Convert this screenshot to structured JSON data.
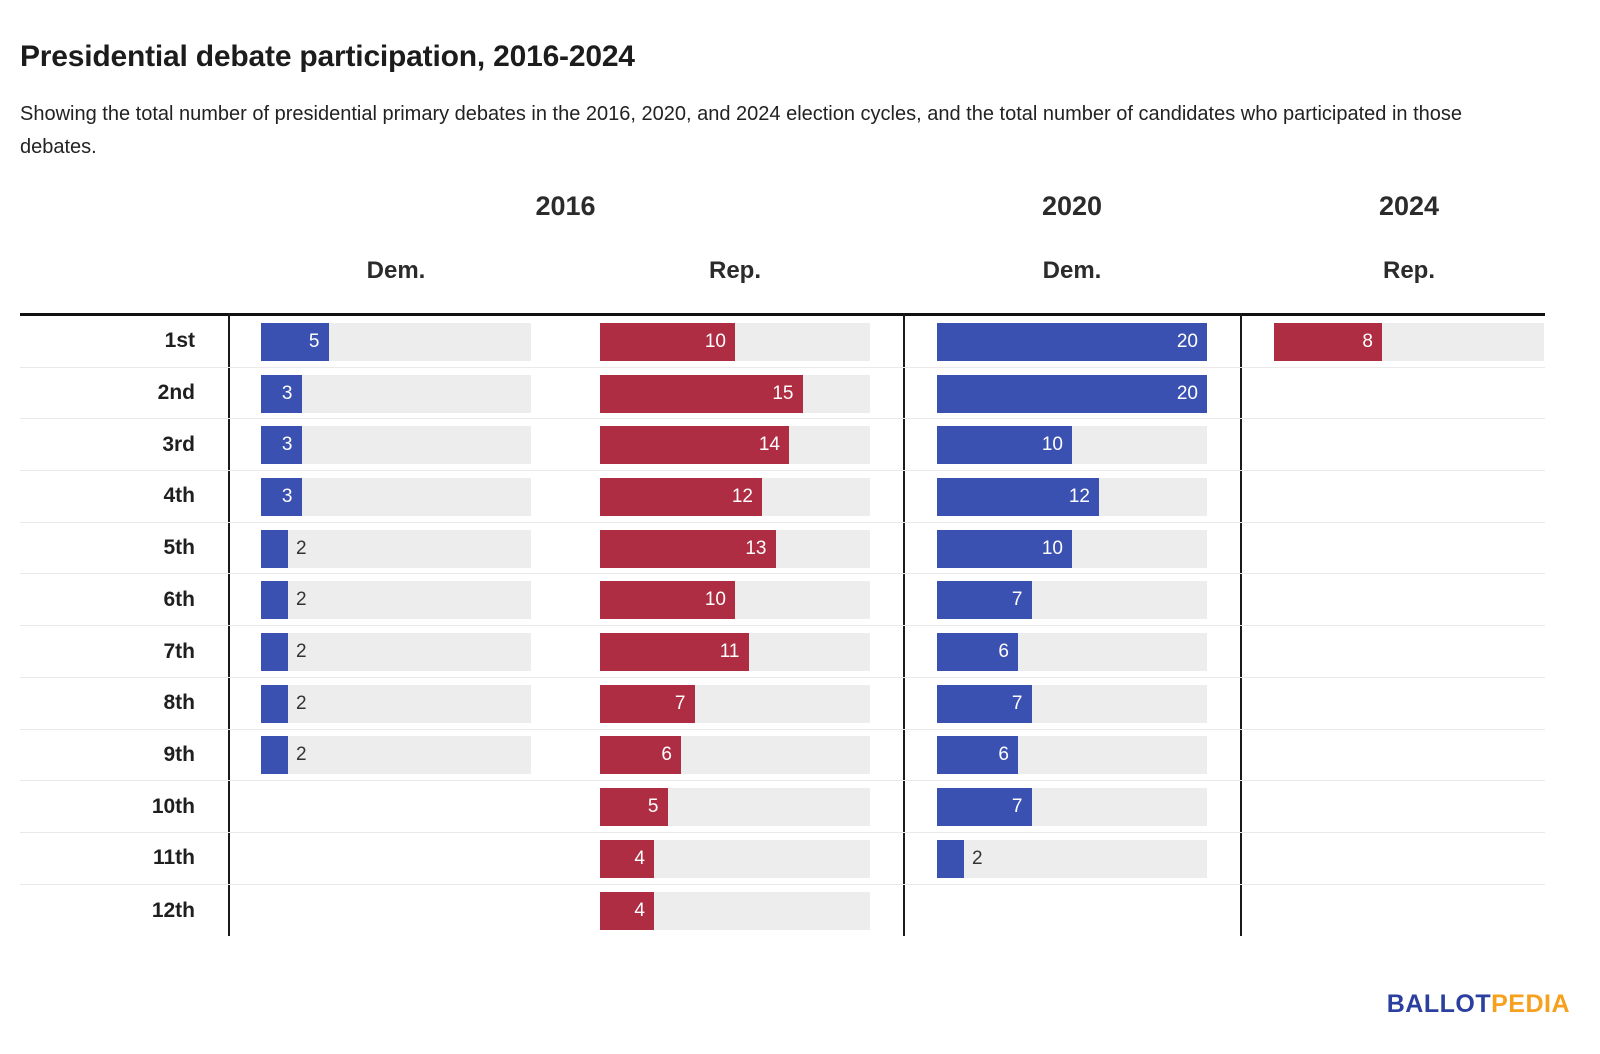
{
  "header": {
    "title": "Presidential debate participation, 2016-2024",
    "subtitle": "Showing the total number of presidential primary debates in the 2016, 2020, and 2024 election cycles, and the total number of candidates who participated in those debates."
  },
  "footer": {
    "logo_part1": "BALLOT",
    "logo_part2": "PEDIA"
  },
  "colors": {
    "dem": "#3a51b2",
    "rep": "#ae2d42",
    "track": "#ededed",
    "logo_blue": "#2b3f9e",
    "logo_orange": "#f7a01d"
  },
  "chart_data": {
    "type": "bar",
    "orientation": "horizontal",
    "title": "Presidential debate participation, 2016-2024",
    "value_range": [
      0,
      20
    ],
    "grid": false,
    "categories": [
      "1st",
      "2nd",
      "3rd",
      "4th",
      "5th",
      "6th",
      "7th",
      "8th",
      "9th",
      "10th",
      "11th",
      "12th"
    ],
    "groups": [
      {
        "year": "2016",
        "columns": [
          "Dem.",
          "Rep."
        ]
      },
      {
        "year": "2020",
        "columns": [
          "Dem."
        ]
      },
      {
        "year": "2024",
        "columns": [
          "Rep."
        ]
      }
    ],
    "series": [
      {
        "name": "2016 Dem.",
        "year": "2016",
        "party_label": "Dem.",
        "party": "dem",
        "values": [
          5,
          3,
          3,
          3,
          2,
          2,
          2,
          2,
          2,
          null,
          null,
          null
        ]
      },
      {
        "name": "2016 Rep.",
        "year": "2016",
        "party_label": "Rep.",
        "party": "rep",
        "values": [
          10,
          15,
          14,
          12,
          13,
          10,
          11,
          7,
          6,
          5,
          4,
          4
        ]
      },
      {
        "name": "2020 Dem.",
        "year": "2020",
        "party_label": "Dem.",
        "party": "dem",
        "values": [
          20,
          20,
          10,
          12,
          10,
          7,
          6,
          7,
          6,
          7,
          2,
          null
        ]
      },
      {
        "name": "2024 Rep.",
        "year": "2024",
        "party_label": "Rep.",
        "party": "rep",
        "values": [
          8,
          null,
          null,
          null,
          null,
          null,
          null,
          null,
          null,
          null,
          null,
          null
        ]
      }
    ]
  }
}
